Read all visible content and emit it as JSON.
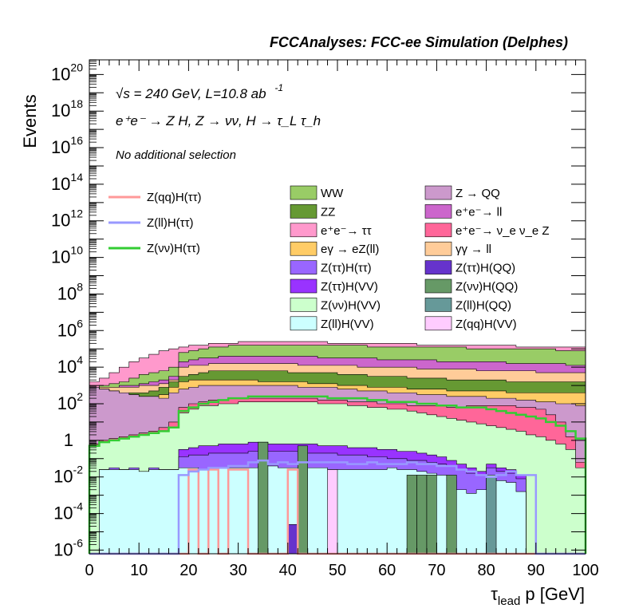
{
  "chart_data": {
    "type": "area",
    "title": "FCCAnalyses: FCC-ee Simulation (Delphes)",
    "xlabel": "τ_lead p [GeV]",
    "ylabel": "Events",
    "xlim": [
      0,
      100
    ],
    "ylim_log10": [
      -6.2,
      20.8
    ],
    "log_y": true,
    "grid": false,
    "bin_width": 2,
    "x_ticks": [
      0,
      10,
      20,
      30,
      40,
      50,
      60,
      70,
      80,
      90,
      100
    ],
    "y_ticks": [
      {
        "base": "10",
        "exp": "20",
        "value": 20
      },
      {
        "base": "10",
        "exp": "18",
        "value": 18
      },
      {
        "base": "10",
        "exp": "16",
        "value": 16
      },
      {
        "base": "10",
        "exp": "14",
        "value": 14
      },
      {
        "base": "10",
        "exp": "12",
        "value": 12
      },
      {
        "base": "10",
        "exp": "10",
        "value": 10
      },
      {
        "base": "10",
        "exp": "8",
        "value": 8
      },
      {
        "base": "10",
        "exp": "6",
        "value": 6
      },
      {
        "base": "10",
        "exp": "4",
        "value": 4
      },
      {
        "base": "10",
        "exp": "2",
        "value": 2
      },
      {
        "base": "1",
        "exp": "",
        "value": 0
      },
      {
        "base": "10",
        "exp": "-2",
        "value": -2
      },
      {
        "base": "10",
        "exp": "-4",
        "value": -4
      },
      {
        "base": "10",
        "exp": "-6",
        "value": -6
      }
    ],
    "annotations": {
      "energy": "√s = 240 GeV, L=10.8 ab",
      "energy_exp": "-1",
      "process": "e⁺e⁻ → Z H, Z → νν, H → τ_L τ_h",
      "selection": "No additional selection"
    },
    "stack_log10_top": [
      {
        "name": "Z(ll)H(VV)",
        "color": "#ccffff",
        "values": [
          -6.2,
          -1.6,
          -1.6,
          -1.6,
          -1.6,
          -1.7,
          -1.6,
          -1.6,
          -1.6,
          -1.5,
          -1.5,
          -1.6,
          -1.6,
          -1.5,
          -1.5,
          -1.5,
          -1.5,
          -1.4,
          -1.4,
          -1.5,
          -1.5,
          -1.5,
          -1.5,
          -1.5,
          -1.6,
          -1.6,
          -1.6,
          -1.6,
          -1.6,
          -1.6,
          -1.5,
          -1.6,
          -1.6,
          -1.7,
          -1.8,
          -1.9,
          -2.2,
          -2.7,
          -2.9,
          -2.7,
          -1.9,
          -2.2,
          -2.3,
          -2.8,
          -6.2,
          -6.2,
          -6.2,
          -6.2,
          -6.2,
          -6.2
        ]
      },
      {
        "name": "Z(νν)H(VV)",
        "color": "#ccffcc",
        "values": [
          -0.3,
          -0.1,
          0.0,
          0.1,
          0.2,
          0.3,
          0.4,
          0.5,
          0.7,
          1.5,
          1.7,
          1.9,
          1.9,
          2.0,
          2.0,
          2.1,
          2.1,
          2.1,
          2.1,
          2.1,
          2.1,
          2.1,
          2.1,
          2.0,
          2.0,
          2.0,
          1.9,
          1.9,
          1.8,
          1.8,
          1.7,
          1.7,
          1.6,
          1.5,
          1.4,
          1.3,
          1.2,
          1.1,
          1.0,
          0.9,
          0.8,
          0.7,
          0.6,
          0.5,
          0.3,
          0.2,
          0.0,
          -0.2,
          -0.5,
          -1.5
        ]
      },
      {
        "name": "e⁺e⁻ → ν_e ν_e Z",
        "color": "#ff6699",
        "values": [
          -0.2,
          0.0,
          0.1,
          0.2,
          0.3,
          0.4,
          0.5,
          0.7,
          1.0,
          1.8,
          2.0,
          2.1,
          2.2,
          2.2,
          2.3,
          2.3,
          2.3,
          2.3,
          2.3,
          2.3,
          2.3,
          2.3,
          2.3,
          2.2,
          2.2,
          2.2,
          2.1,
          2.1,
          2.1,
          2.0,
          2.0,
          2.0,
          1.9,
          1.9,
          1.9,
          1.9,
          1.8,
          1.8,
          1.9,
          1.9,
          1.9,
          1.9,
          1.9,
          1.8,
          1.8,
          1.7,
          1.4,
          1.0,
          0.2,
          -1.2
        ]
      },
      {
        "name": "Z → QQ",
        "color": "#cc99cc",
        "values": [
          2.9,
          2.8,
          2.7,
          2.6,
          2.5,
          2.4,
          2.4,
          2.3,
          2.6,
          2.8,
          2.9,
          3.0,
          3.0,
          3.0,
          3.0,
          3.0,
          3.0,
          3.0,
          3.0,
          3.0,
          3.0,
          2.9,
          2.9,
          2.9,
          2.9,
          2.8,
          2.8,
          2.7,
          2.7,
          2.7,
          2.6,
          2.6,
          2.6,
          2.5,
          2.5,
          2.5,
          2.4,
          2.4,
          2.4,
          2.4,
          2.3,
          2.3,
          2.3,
          2.2,
          2.2,
          2.1,
          2.1,
          2.0,
          2.0,
          1.9
        ]
      },
      {
        "name": "eγ → eZ(ll)",
        "color": "#ffcc66",
        "values": [
          2.9,
          2.8,
          2.7,
          2.6,
          2.5,
          2.4,
          2.4,
          2.5,
          2.9,
          3.2,
          3.3,
          3.3,
          3.3,
          3.3,
          3.3,
          3.3,
          3.3,
          3.2,
          3.2,
          3.2,
          3.2,
          3.2,
          3.1,
          3.1,
          3.1,
          3.0,
          3.0,
          3.0,
          2.9,
          2.9,
          2.9,
          2.9,
          2.8,
          2.8,
          2.8,
          2.8,
          2.7,
          2.7,
          2.7,
          2.7,
          2.7,
          2.7,
          2.6,
          2.6,
          2.6,
          2.6,
          2.6,
          2.6,
          2.6,
          2.6
        ]
      },
      {
        "name": "ZZ",
        "color": "#669933",
        "values": [
          2.9,
          2.8,
          2.7,
          2.6,
          2.6,
          2.6,
          2.7,
          2.9,
          3.2,
          3.5,
          3.6,
          3.7,
          3.8,
          3.8,
          3.8,
          3.8,
          3.8,
          3.8,
          3.8,
          3.8,
          3.7,
          3.7,
          3.7,
          3.7,
          3.7,
          3.6,
          3.6,
          3.6,
          3.5,
          3.5,
          3.5,
          3.5,
          3.4,
          3.4,
          3.4,
          3.4,
          3.3,
          3.3,
          3.3,
          3.3,
          3.3,
          3.3,
          3.2,
          3.2,
          3.2,
          3.2,
          3.2,
          3.2,
          3.2,
          3.2
        ]
      },
      {
        "name": "γγ → ll",
        "color": "#ffcc99",
        "values": [
          2.9,
          2.9,
          2.9,
          2.9,
          2.9,
          3.0,
          3.0,
          3.1,
          3.3,
          4.0,
          4.1,
          4.1,
          4.2,
          4.2,
          4.2,
          4.2,
          4.2,
          4.2,
          4.2,
          4.2,
          4.2,
          4.1,
          4.1,
          4.1,
          4.1,
          4.1,
          4.1,
          4.0,
          4.0,
          4.0,
          4.0,
          4.0,
          4.0,
          3.9,
          3.9,
          3.9,
          3.9,
          3.9,
          3.9,
          3.8,
          3.8,
          3.8,
          3.8,
          3.8,
          3.8,
          3.7,
          3.7,
          3.7,
          3.7,
          3.7
        ]
      },
      {
        "name": "e⁺e⁻ → ll",
        "color": "#cc66cc",
        "values": [
          2.9,
          2.9,
          2.9,
          3.0,
          3.0,
          3.1,
          3.2,
          3.3,
          3.5,
          4.3,
          4.4,
          4.5,
          4.5,
          4.6,
          4.6,
          4.6,
          4.6,
          4.6,
          4.6,
          4.6,
          4.6,
          4.6,
          4.6,
          4.5,
          4.5,
          4.5,
          4.5,
          4.5,
          4.5,
          4.4,
          4.4,
          4.4,
          4.4,
          4.4,
          4.4,
          4.3,
          4.3,
          4.3,
          4.3,
          4.3,
          4.3,
          4.3,
          4.2,
          4.2,
          4.2,
          4.2,
          4.2,
          4.2,
          4.1,
          4.1
        ]
      },
      {
        "name": "WW",
        "color": "#99cc66",
        "values": [
          2.9,
          3.0,
          3.1,
          3.2,
          3.4,
          3.6,
          3.7,
          3.8,
          4.0,
          4.8,
          4.9,
          5.0,
          5.1,
          5.1,
          5.2,
          5.2,
          5.2,
          5.2,
          5.2,
          5.2,
          5.2,
          5.2,
          5.2,
          5.2,
          5.2,
          5.2,
          5.2,
          5.2,
          5.1,
          5.1,
          5.1,
          5.1,
          5.1,
          5.1,
          5.1,
          5.1,
          5.1,
          5.1,
          5.0,
          5.0,
          5.0,
          5.0,
          5.0,
          5.0,
          5.0,
          5.0,
          5.0,
          4.9,
          4.9,
          4.9
        ]
      },
      {
        "name": "e⁺e⁻ → ττ",
        "color": "#ff99cc",
        "values": [
          3.2,
          3.4,
          3.7,
          4.0,
          4.3,
          4.5,
          4.7,
          4.9,
          5.0,
          5.1,
          5.2,
          5.2,
          5.3,
          5.3,
          5.3,
          5.4,
          5.4,
          5.4,
          5.4,
          5.4,
          5.4,
          5.4,
          5.4,
          5.4,
          5.3,
          5.3,
          5.3,
          5.3,
          5.3,
          5.3,
          5.3,
          5.3,
          5.3,
          5.2,
          5.2,
          5.2,
          5.2,
          5.2,
          5.2,
          5.2,
          5.2,
          5.2,
          5.2,
          5.1,
          5.1,
          5.1,
          5.1,
          5.1,
          5.1,
          5.1
        ]
      }
    ],
    "signal_bars": [
      {
        "name": "Z(ττ)H(ττ)",
        "color": "#9966ff"
      },
      {
        "name": "Z(ττ)H(QQ)",
        "color": "#6633cc"
      },
      {
        "name": "Z(ττ)H(VV)",
        "color": "#9933ff"
      },
      {
        "name": "Z(νν)H(QQ)",
        "color": "#669966"
      },
      {
        "name": "Z(ll)H(QQ)",
        "color": "#669999"
      },
      {
        "name": "Z(qq)H(VV)",
        "color": "#ffccff"
      }
    ],
    "lines": [
      {
        "name": "Z(qq)H(ττ)",
        "color": "#ff9999",
        "values": [
          -6.2,
          -6.2,
          -6.2,
          -6.2,
          -6.2,
          -6.2,
          -6.2,
          -6.2,
          -6.2,
          -6.2,
          -1.6,
          -6.2,
          -1.6,
          -6.2,
          -1.6,
          -1.6,
          -6.2,
          -6.2,
          -6.2,
          -6.2,
          -1.6,
          -6.2,
          -6.2,
          -6.2,
          -6.2,
          -6.2,
          -6.2,
          -6.2,
          -6.2,
          -6.2,
          -6.2,
          -6.2,
          -6.2,
          -6.2,
          -6.2,
          -6.2,
          -6.2,
          -6.2,
          -6.2,
          -6.2,
          -6.2,
          -6.2,
          -6.2,
          -6.2,
          -6.2,
          -6.2,
          -6.2,
          -6.2,
          -6.2,
          -6.2
        ]
      },
      {
        "name": "Z(ll)H(ττ)",
        "color": "#9999ff",
        "values": [
          -6.2,
          -6.2,
          -6.2,
          -6.2,
          -6.2,
          -6.2,
          -6.2,
          -6.2,
          -6.2,
          -1.9,
          -1.7,
          -1.6,
          -1.5,
          -1.5,
          -1.4,
          -1.4,
          -1.2,
          -1.1,
          -1.3,
          -1.2,
          -1.3,
          -1.2,
          -1.2,
          -1.2,
          -1.2,
          -1.2,
          -1.3,
          -1.3,
          -1.2,
          -1.3,
          -1.3,
          -1.3,
          -1.2,
          -1.3,
          -1.3,
          -1.4,
          -1.4,
          -1.6,
          -1.7,
          -1.9,
          -2.0,
          -1.9,
          -1.7,
          -1.9,
          -1.9,
          -6.2,
          -6.2,
          -6.2,
          -6.2,
          -6.2
        ]
      },
      {
        "name": "Z(νν)H(ττ)",
        "color": "#33cc33",
        "values": [
          -0.3,
          -0.1,
          0.0,
          0.1,
          0.2,
          0.3,
          0.4,
          0.5,
          0.7,
          1.6,
          1.8,
          2.0,
          2.1,
          2.2,
          2.3,
          2.3,
          2.4,
          2.4,
          2.4,
          2.4,
          2.4,
          2.4,
          2.4,
          2.4,
          2.3,
          2.3,
          2.3,
          2.3,
          2.2,
          2.2,
          2.1,
          2.1,
          2.1,
          2.0,
          2.0,
          1.9,
          1.9,
          1.8,
          1.8,
          1.8,
          1.7,
          1.6,
          1.5,
          1.4,
          1.3,
          1.2,
          1.0,
          0.8,
          0.5,
          0.1
        ]
      }
    ],
    "legend": {
      "placement": "top",
      "line_entries": [
        "Z(qq)H(ττ)",
        "Z(ll)H(ττ)",
        "Z(νν)H(ττ)"
      ],
      "col1": [
        {
          "label": "WW",
          "color": "#99cc66"
        },
        {
          "label": "ZZ",
          "color": "#669933"
        },
        {
          "label": "e⁺e⁻→ ττ",
          "color": "#ff99cc"
        },
        {
          "label": "eγ → eZ(ll)",
          "color": "#ffcc66"
        },
        {
          "label": "Z(ττ)H(ττ)",
          "color": "#9966ff"
        },
        {
          "label": "Z(ττ)H(VV)",
          "color": "#9933ff"
        },
        {
          "label": "Z(νν)H(VV)",
          "color": "#ccffcc"
        },
        {
          "label": "Z(ll)H(VV)",
          "color": "#ccffff"
        }
      ],
      "col2": [
        {
          "label": "Z → QQ",
          "color": "#cc99cc"
        },
        {
          "label": "e⁺e⁻→ ll",
          "color": "#cc66cc"
        },
        {
          "label": "e⁺e⁻→ ν_e ν_e Z",
          "color": "#ff6699"
        },
        {
          "label": "γγ → ll",
          "color": "#ffcc99"
        },
        {
          "label": "Z(ττ)H(QQ)",
          "color": "#6633cc"
        },
        {
          "label": "Z(νν)H(QQ)",
          "color": "#669966"
        },
        {
          "label": "Z(ll)H(QQ)",
          "color": "#669999"
        },
        {
          "label": "Z(qq)H(VV)",
          "color": "#ffccff"
        }
      ]
    }
  }
}
